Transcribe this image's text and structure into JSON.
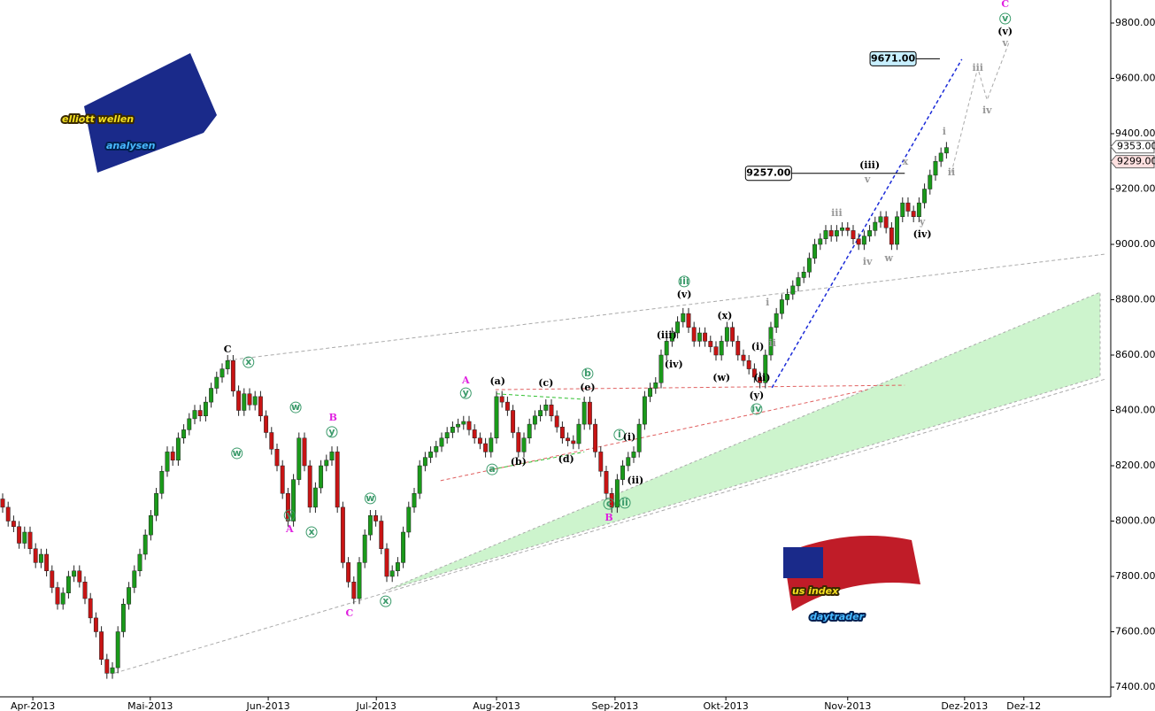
{
  "chart_data": {
    "type": "candlestick",
    "open": [
      8080,
      8050,
      8000,
      7980,
      7920,
      7960,
      7900,
      7850,
      7880,
      7820,
      7760,
      7700,
      7740,
      7800,
      7820,
      7780,
      7720,
      7650,
      7600,
      7500,
      7450,
      7470,
      7600,
      7700,
      7760,
      7820,
      7880,
      7950,
      8020,
      8100,
      8180,
      8250,
      8220,
      8300,
      8330,
      8370,
      8400,
      8380,
      8430,
      8480,
      8520,
      8550,
      8580,
      8470,
      8400,
      8460,
      8420,
      8450,
      8380,
      8320,
      8260,
      8200,
      8100,
      8000,
      8150,
      8300,
      8200,
      8050,
      8120,
      8200,
      8220,
      8250,
      8050,
      7850,
      7780,
      7720,
      7850,
      7950,
      8020,
      8000,
      7900,
      7800,
      7820,
      7850,
      7960,
      8050,
      8100,
      8200,
      8230,
      8250,
      8270,
      8300,
      8320,
      8340,
      8350,
      8360,
      8330,
      8300,
      8280,
      8250,
      8300,
      8450,
      8430,
      8400,
      8320,
      8250,
      8300,
      8350,
      8380,
      8400,
      8420,
      8380,
      8340,
      8300,
      8290,
      8280,
      8350,
      8430,
      8350,
      8250,
      8180,
      8100,
      8050,
      8150,
      8200,
      8230,
      8250,
      8350,
      8450,
      8480,
      8500,
      8600,
      8650,
      8680,
      8720,
      8750,
      8700,
      8650,
      8680,
      8650,
      8630,
      8600,
      8650,
      8700,
      8650,
      8600,
      8580,
      8550,
      8520,
      8500,
      8600,
      8700,
      8750,
      8800,
      8820,
      8850,
      8880,
      8900,
      8950,
      9000,
      9020,
      9050,
      9030,
      9050,
      9060,
      9050,
      9020,
      9000,
      9030,
      9050,
      9080,
      9100,
      9060,
      9000,
      9100,
      9150,
      9120,
      9100,
      9150,
      9200,
      9250,
      9300,
      9330
    ],
    "high": [
      8100,
      8070,
      8020,
      8000,
      7980,
      7980,
      7920,
      7900,
      7900,
      7840,
      7780,
      7760,
      7820,
      7840,
      7840,
      7800,
      7740,
      7670,
      7620,
      7520,
      7490,
      7620,
      7720,
      7780,
      7840,
      7900,
      7970,
      8040,
      8120,
      8200,
      8270,
      8270,
      8320,
      8350,
      8390,
      8420,
      8420,
      8450,
      8500,
      8540,
      8570,
      8600,
      8600,
      8490,
      8480,
      8480,
      8470,
      8470,
      8400,
      8340,
      8280,
      8220,
      8120,
      8170,
      8320,
      8320,
      8220,
      8140,
      8220,
      8240,
      8270,
      8270,
      8070,
      7870,
      7800,
      7870,
      7970,
      8040,
      8040,
      8020,
      7920,
      7840,
      7870,
      7980,
      8070,
      8120,
      8220,
      8250,
      8270,
      8290,
      8320,
      8340,
      8360,
      8370,
      8380,
      8380,
      8350,
      8320,
      8300,
      8320,
      8470,
      8470,
      8450,
      8420,
      8340,
      8320,
      8370,
      8400,
      8420,
      8440,
      8440,
      8400,
      8360,
      8320,
      8310,
      8370,
      8450,
      8450,
      8370,
      8270,
      8200,
      8120,
      8170,
      8220,
      8250,
      8270,
      8370,
      8470,
      8500,
      8520,
      8620,
      8670,
      8700,
      8740,
      8770,
      8770,
      8720,
      8700,
      8700,
      8670,
      8650,
      8670,
      8720,
      8720,
      8670,
      8620,
      8600,
      8570,
      8540,
      8620,
      8720,
      8770,
      8820,
      8840,
      8870,
      8900,
      8920,
      8970,
      9020,
      9040,
      9070,
      9070,
      9070,
      9080,
      9080,
      9070,
      9040,
      9050,
      9070,
      9100,
      9120,
      9120,
      9080,
      9120,
      9170,
      9170,
      9140,
      9170,
      9220,
      9270,
      9320,
      9350,
      9370
    ],
    "low": [
      8030,
      7980,
      7960,
      7900,
      7900,
      7880,
      7830,
      7830,
      7800,
      7740,
      7680,
      7680,
      7720,
      7780,
      7760,
      7700,
      7630,
      7580,
      7480,
      7430,
      7430,
      7450,
      7580,
      7680,
      7740,
      7800,
      7860,
      7930,
      8000,
      8080,
      8160,
      8200,
      8200,
      8280,
      8310,
      8350,
      8360,
      8360,
      8410,
      8460,
      8500,
      8530,
      8450,
      8380,
      8380,
      8400,
      8400,
      8360,
      8300,
      8240,
      8180,
      8080,
      7980,
      7980,
      8130,
      8180,
      8030,
      8030,
      8100,
      8180,
      8200,
      8030,
      7830,
      7760,
      7700,
      7700,
      7830,
      7930,
      7980,
      7880,
      7780,
      7780,
      7800,
      7830,
      7940,
      8030,
      8080,
      8180,
      8210,
      8230,
      8250,
      8280,
      8300,
      8320,
      8330,
      8310,
      8280,
      8260,
      8230,
      8230,
      8280,
      8410,
      8380,
      8300,
      8230,
      8230,
      8280,
      8330,
      8360,
      8380,
      8360,
      8320,
      8280,
      8270,
      8260,
      8260,
      8330,
      8330,
      8230,
      8160,
      8080,
      8030,
      8030,
      8130,
      8180,
      8210,
      8230,
      8330,
      8430,
      8460,
      8480,
      8580,
      8630,
      8660,
      8700,
      8680,
      8630,
      8630,
      8630,
      8610,
      8580,
      8580,
      8630,
      8630,
      8580,
      8560,
      8530,
      8500,
      8480,
      8480,
      8580,
      8680,
      8730,
      8780,
      8800,
      8830,
      8860,
      8880,
      8930,
      8980,
      9000,
      9010,
      9010,
      9030,
      9030,
      9000,
      8980,
      8980,
      9010,
      9030,
      9060,
      9040,
      8980,
      8980,
      9080,
      9100,
      9080,
      9080,
      9130,
      9180,
      9230,
      9280,
      9310
    ],
    "close": [
      8050,
      8000,
      7980,
      7920,
      7960,
      7900,
      7850,
      7880,
      7820,
      7760,
      7700,
      7740,
      7800,
      7820,
      7780,
      7720,
      7650,
      7600,
      7500,
      7450,
      7470,
      7600,
      7700,
      7760,
      7820,
      7880,
      7950,
      8020,
      8100,
      8180,
      8250,
      8220,
      8300,
      8330,
      8370,
      8400,
      8380,
      8430,
      8480,
      8520,
      8550,
      8580,
      8470,
      8400,
      8460,
      8420,
      8450,
      8380,
      8320,
      8260,
      8200,
      8100,
      8000,
      8150,
      8300,
      8200,
      8050,
      8120,
      8200,
      8220,
      8250,
      8050,
      7850,
      7780,
      7720,
      7850,
      7950,
      8020,
      8000,
      7900,
      7800,
      7820,
      7850,
      7960,
      8050,
      8100,
      8200,
      8230,
      8250,
      8270,
      8300,
      8320,
      8340,
      8350,
      8360,
      8330,
      8300,
      8280,
      8250,
      8300,
      8450,
      8430,
      8400,
      8320,
      8250,
      8300,
      8350,
      8380,
      8400,
      8420,
      8380,
      8340,
      8300,
      8290,
      8280,
      8350,
      8430,
      8350,
      8250,
      8180,
      8100,
      8050,
      8150,
      8200,
      8230,
      8250,
      8350,
      8450,
      8480,
      8500,
      8600,
      8650,
      8680,
      8720,
      8750,
      8700,
      8650,
      8680,
      8650,
      8630,
      8600,
      8650,
      8700,
      8650,
      8600,
      8580,
      8550,
      8520,
      8500,
      8600,
      8700,
      8750,
      8800,
      8820,
      8850,
      8880,
      8900,
      8950,
      9000,
      9020,
      9050,
      9030,
      9050,
      9060,
      9050,
      9020,
      9000,
      9030,
      9050,
      9080,
      9100,
      9060,
      9000,
      9100,
      9150,
      9120,
      9100,
      9150,
      9200,
      9250,
      9300,
      9330,
      9350
    ],
    "up_color": "#1a9a1a",
    "down_color": "#c81414",
    "xlim": [
      -0.484,
      201.94
    ],
    "ylim": [
      7364.8,
      9883.2
    ],
    "xticks": [
      {
        "value": 5.5,
        "label": "Apr-2013"
      },
      {
        "value": 26.9,
        "label": "Mai-2013"
      },
      {
        "value": 48.4,
        "label": "Jun-2013"
      },
      {
        "value": 68.1,
        "label": "Jul-2013"
      },
      {
        "value": 90,
        "label": "Aug-2013"
      },
      {
        "value": 111.6,
        "label": "Sep-2013"
      },
      {
        "value": 131.8,
        "label": "Okt-2013"
      },
      {
        "value": 154,
        "label": "Nov-2013"
      },
      {
        "value": 175.3,
        "label": "Dez-2013"
      },
      {
        "value": 186.1,
        "label": "Dez-12"
      }
    ],
    "yticks": [
      {
        "value": 7400,
        "label": "7400.00"
      },
      {
        "value": 7600,
        "label": "7600.00"
      },
      {
        "value": 7800,
        "label": "7800.00"
      },
      {
        "value": 8000,
        "label": "8000.00"
      },
      {
        "value": 8200,
        "label": "8200.00"
      },
      {
        "value": 8400,
        "label": "8400.00"
      },
      {
        "value": 8600,
        "label": "8600.00"
      },
      {
        "value": 8800,
        "label": "8800.00"
      },
      {
        "value": 9000,
        "label": "9000.00"
      },
      {
        "value": 9200,
        "label": "9200.00"
      },
      {
        "value": 9400,
        "label": "9400.00"
      },
      {
        "value": 9600,
        "label": "9600.00"
      },
      {
        "value": 9800,
        "label": "9800.00"
      }
    ],
    "price_tags": [
      {
        "value": 9353,
        "label": "9353.00",
        "color": "#ffffff"
      },
      {
        "value": 9299,
        "label": "9299.00",
        "color": "#ffe0e0"
      }
    ],
    "target_boxes": [
      {
        "value": 9257,
        "label": "9257.00",
        "from": 135.7,
        "to": 164.4,
        "color": "#ffffff"
      },
      {
        "value": 9671,
        "label": "9671.00",
        "from": 158.4,
        "to": 170.8,
        "color": "#c8f0ff"
      }
    ],
    "band": {
      "x": [
        69.8,
        200
      ],
      "upper": [
        7749,
        8827
      ],
      "lower": [
        7749,
        8523
      ],
      "color": "#b8f0b8"
    },
    "lines": [
      {
        "x": [
          40.97,
          201.1
        ],
        "y": [
          8581,
          8965
        ],
        "color": "#aaaaaa",
        "dash": true
      },
      {
        "x": [
          20.5,
          201.1
        ],
        "y": [
          7451,
          8514
        ],
        "color": "#aaaaaa",
        "dash": true
      },
      {
        "x": [
          140.2,
          174.8
        ],
        "y": [
          8482,
          9669
        ],
        "color": "#1a2ad8",
        "dash": true
      },
      {
        "x": [
          89.8,
          164.4
        ],
        "y": [
          8475,
          8491
        ],
        "color": "#e06060",
        "dash": true
      },
      {
        "x": [
          79.8,
          157.6
        ],
        "y": [
          8146,
          8475
        ],
        "color": "#e06060",
        "dash": true
      },
      {
        "x": [
          90,
          106
        ],
        "y": [
          8460,
          8440
        ],
        "color": "#30c030",
        "dash": true
      },
      {
        "x": [
          89.2,
          106
        ],
        "y": [
          8187,
          8250
        ],
        "color": "#30c030",
        "dash": true
      },
      {
        "x": [
          172.9,
          177.7,
          179.4,
          183.4
        ],
        "y": [
          9259,
          9637,
          9522,
          9730
        ],
        "color": "#aaaaaa",
        "dash": true
      }
    ],
    "annotations": [
      {
        "text": "C",
        "x": 41,
        "y": 8620,
        "color": "#000000",
        "style": "bold"
      },
      {
        "text": "x",
        "x": 44.8,
        "y": 8574,
        "color": "#3a9a6a",
        "style": "circle"
      },
      {
        "text": "w",
        "x": 53.4,
        "y": 8411,
        "color": "#3a9a6a",
        "style": "circle"
      },
      {
        "text": "w",
        "x": 42.7,
        "y": 8245,
        "color": "#3a9a6a",
        "style": "circle"
      },
      {
        "text": "B",
        "x": 60.2,
        "y": 8373,
        "color": "#e020e0",
        "style": "bold"
      },
      {
        "text": "y",
        "x": 60,
        "y": 8322,
        "color": "#3a9a6a",
        "style": "circle"
      },
      {
        "text": "y",
        "x": 52.3,
        "y": 8021,
        "color": "#3a9a6a",
        "style": "circle"
      },
      {
        "text": "A",
        "x": 52.3,
        "y": 7970,
        "color": "#e020e0",
        "style": "bold"
      },
      {
        "text": "x",
        "x": 56.3,
        "y": 7960,
        "color": "#3a9a6a",
        "style": "circle"
      },
      {
        "text": "w",
        "x": 67,
        "y": 8082,
        "color": "#3a9a6a",
        "style": "circle"
      },
      {
        "text": "C",
        "x": 63.2,
        "y": 7666,
        "color": "#e020e0",
        "style": "bold"
      },
      {
        "text": "x",
        "x": 69.8,
        "y": 7710,
        "color": "#3a9a6a",
        "style": "circle"
      },
      {
        "text": "A",
        "x": 84.4,
        "y": 8507,
        "color": "#e020e0",
        "style": "bold"
      },
      {
        "text": "y",
        "x": 84.4,
        "y": 8462,
        "color": "#3a9a6a",
        "style": "circle"
      },
      {
        "text": "(a)",
        "x": 90.2,
        "y": 8504,
        "color": "#000000",
        "style": "bold"
      },
      {
        "text": "(c)",
        "x": 99,
        "y": 8498,
        "color": "#000000",
        "style": "bold"
      },
      {
        "text": "b",
        "x": 106.6,
        "y": 8533,
        "color": "#3a9a6a",
        "style": "circle"
      },
      {
        "text": "(e)",
        "x": 106.6,
        "y": 8482,
        "color": "#000000",
        "style": "bold"
      },
      {
        "text": "a",
        "x": 89.2,
        "y": 8187,
        "color": "#3a9a6a",
        "style": "circle"
      },
      {
        "text": "(b)",
        "x": 94,
        "y": 8213,
        "color": "#000000",
        "style": "bold"
      },
      {
        "text": "(d)",
        "x": 102.7,
        "y": 8222,
        "color": "#000000",
        "style": "bold"
      },
      {
        "text": "i",
        "x": 112.4,
        "y": 8312,
        "color": "#3a9a6a",
        "style": "circle"
      },
      {
        "text": "(i)",
        "x": 114.2,
        "y": 8302,
        "color": "#000000",
        "style": "bold"
      },
      {
        "text": "(ii)",
        "x": 115.3,
        "y": 8146,
        "color": "#000000",
        "style": "bold"
      },
      {
        "text": "c",
        "x": 110.5,
        "y": 8062,
        "color": "#3a9a6a",
        "style": "circle"
      },
      {
        "text": "ii",
        "x": 113.4,
        "y": 8066,
        "color": "#3a9a6a",
        "style": "circle"
      },
      {
        "text": "B",
        "x": 110.5,
        "y": 8011,
        "color": "#e020e0",
        "style": "bold"
      },
      {
        "text": "iii",
        "x": 124.2,
        "y": 8866,
        "color": "#3a9a6a",
        "style": "circle"
      },
      {
        "text": "(v)",
        "x": 124.2,
        "y": 8818,
        "color": "#000000",
        "style": "bold"
      },
      {
        "text": "(iii)",
        "x": 121,
        "y": 8670,
        "color": "#000000",
        "style": "bold"
      },
      {
        "text": "(iv)",
        "x": 122.3,
        "y": 8565,
        "color": "#000000",
        "style": "bold"
      },
      {
        "text": "(x)",
        "x": 131.6,
        "y": 8741,
        "color": "#000000",
        "style": "bold"
      },
      {
        "text": "(w)",
        "x": 131,
        "y": 8517,
        "color": "#000000",
        "style": "bold"
      },
      {
        "text": "(i)",
        "x": 137.6,
        "y": 8629,
        "color": "#000000",
        "style": "bold"
      },
      {
        "text": "(ii)",
        "x": 138.4,
        "y": 8517,
        "color": "#000000",
        "style": "bold"
      },
      {
        "text": "(y)",
        "x": 137.4,
        "y": 8453,
        "color": "#000000",
        "style": "bold"
      },
      {
        "text": "iv",
        "x": 137.4,
        "y": 8405,
        "color": "#3a9a6a",
        "style": "circle"
      },
      {
        "text": "i",
        "x": 139.4,
        "y": 8789,
        "color": "#999999",
        "style": "bold"
      },
      {
        "text": "ii",
        "x": 140.3,
        "y": 8642,
        "color": "#999999",
        "style": "bold"
      },
      {
        "text": "iii",
        "x": 152,
        "y": 9112,
        "color": "#999999",
        "style": "bold"
      },
      {
        "text": "iv",
        "x": 157.6,
        "y": 8936,
        "color": "#999999",
        "style": "bold"
      },
      {
        "text": "v",
        "x": 157.6,
        "y": 9234,
        "color": "#999999",
        "style": "bold"
      },
      {
        "text": "w",
        "x": 161.5,
        "y": 8949,
        "color": "#999999",
        "style": "bold"
      },
      {
        "text": "(iii)",
        "x": 158,
        "y": 9285,
        "color": "#000000",
        "style": "bold"
      },
      {
        "text": "x",
        "x": 164.5,
        "y": 9298,
        "color": "#999999",
        "style": "bold"
      },
      {
        "text": "y",
        "x": 167.6,
        "y": 9080,
        "color": "#999999",
        "style": "bold"
      },
      {
        "text": "(iv)",
        "x": 167.6,
        "y": 9035,
        "color": "#000000",
        "style": "bold"
      },
      {
        "text": "i",
        "x": 171.6,
        "y": 9406,
        "color": "#999999",
        "style": "bold"
      },
      {
        "text": "ii",
        "x": 172.9,
        "y": 9259,
        "color": "#999999",
        "style": "bold"
      },
      {
        "text": "iii",
        "x": 177.7,
        "y": 9637,
        "color": "#999999",
        "style": "bold"
      },
      {
        "text": "iv",
        "x": 179.4,
        "y": 9483,
        "color": "#999999",
        "style": "bold"
      },
      {
        "text": "v",
        "x": 182.7,
        "y": 9726,
        "color": "#999999",
        "style": "bold"
      },
      {
        "text": "(v)",
        "x": 182.7,
        "y": 9768,
        "color": "#000000",
        "style": "bold"
      },
      {
        "text": "v",
        "x": 182.7,
        "y": 9816,
        "color": "#3a9a6a",
        "style": "circle"
      },
      {
        "text": "C",
        "x": 182.7,
        "y": 9867,
        "color": "#e020e0",
        "style": "bold"
      }
    ]
  },
  "logos": {
    "top": [
      "elliott wellen",
      "analysen"
    ],
    "bottom": [
      "us index",
      "daytrader"
    ]
  }
}
